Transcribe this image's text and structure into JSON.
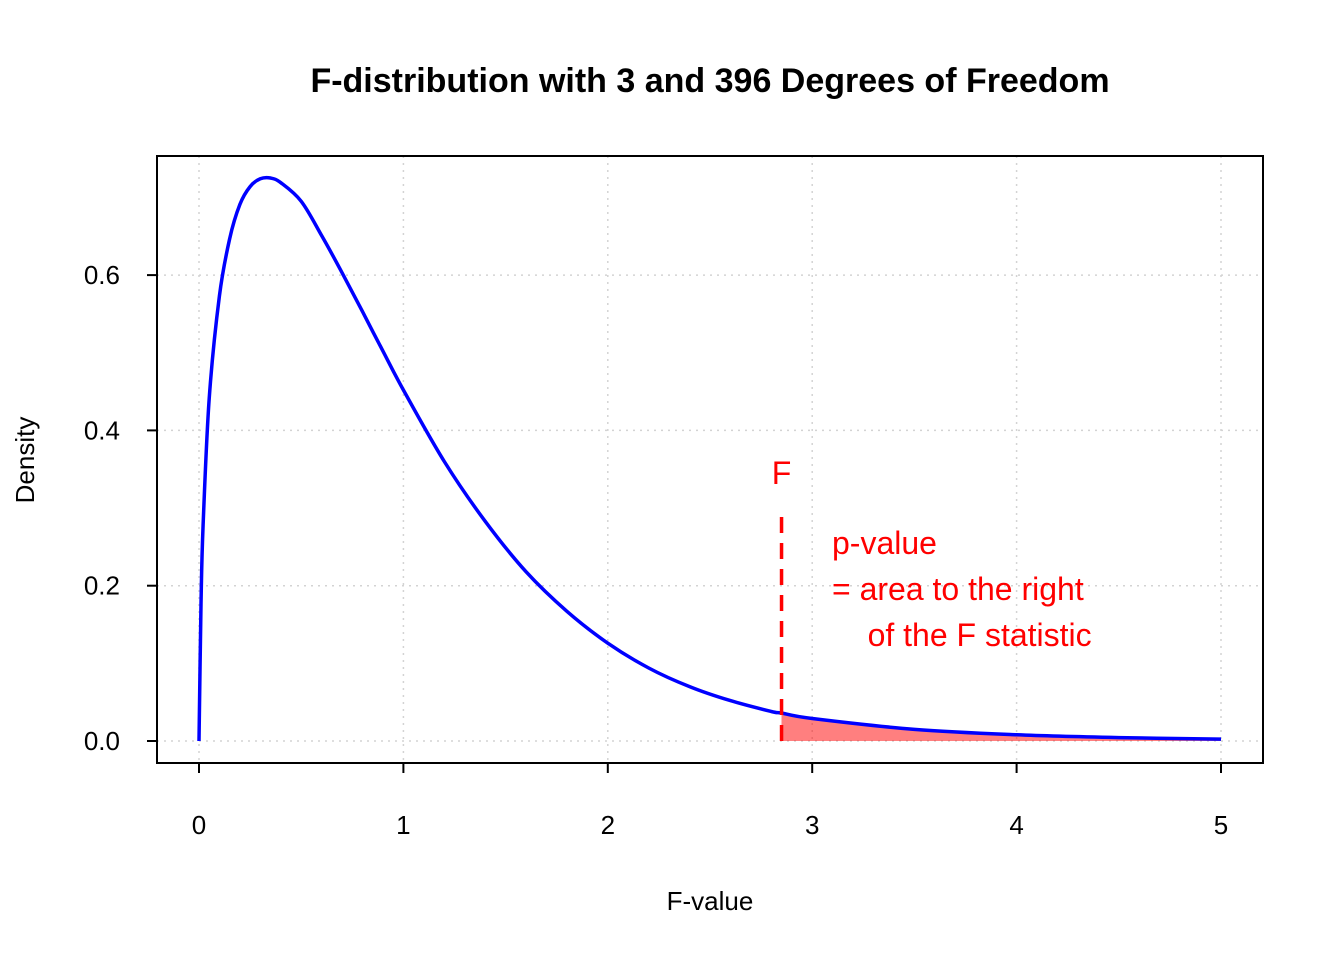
{
  "chart_data": {
    "type": "area",
    "title": "F-distribution with 3 and 396 Degrees of Freedom",
    "xlabel": "F-value",
    "ylabel": "Density",
    "xlim": [
      0,
      5
    ],
    "ylim": [
      0,
      0.72
    ],
    "x_ticks": [
      "0",
      "1",
      "2",
      "3",
      "4",
      "5"
    ],
    "y_ticks": [
      "0.0",
      "0.2",
      "0.4",
      "0.6"
    ],
    "grid": true,
    "df1": 3,
    "df2": 396,
    "series": [
      {
        "color": "#0000ff",
        "x": [
          0,
          0.01,
          0.02,
          0.05,
          0.1,
          0.15,
          0.2,
          0.25,
          0.3,
          0.35,
          0.4,
          0.5,
          0.6,
          0.7,
          0.8,
          0.9,
          1.0,
          1.2,
          1.4,
          1.6,
          1.8,
          2.0,
          2.2,
          2.4,
          2.6,
          2.8,
          2.85,
          3.0,
          3.5,
          4.0,
          4.5,
          5.0
        ],
        "y": [
          0,
          0.176,
          0.278,
          0.441,
          0.573,
          0.647,
          0.691,
          0.714,
          0.724,
          0.725,
          0.719,
          0.695,
          0.651,
          0.603,
          0.553,
          0.502,
          0.452,
          0.36,
          0.283,
          0.218,
          0.167,
          0.126,
          0.094,
          0.07,
          0.052,
          0.038,
          0.036,
          0.029,
          0.015,
          0.008,
          0.0044,
          0.0024
        ]
      }
    ],
    "shaded_region": {
      "from": 2.85,
      "to": 5.0,
      "color": "#ff0000",
      "opacity": 0.5
    },
    "critical_line": {
      "x": 2.85,
      "y_top": 0.3,
      "color": "#ff0000",
      "label": "F"
    },
    "annotation": {
      "color": "#ff0000",
      "lines": [
        "p-value",
        "= area to the right",
        "    of the F statistic"
      ]
    }
  }
}
